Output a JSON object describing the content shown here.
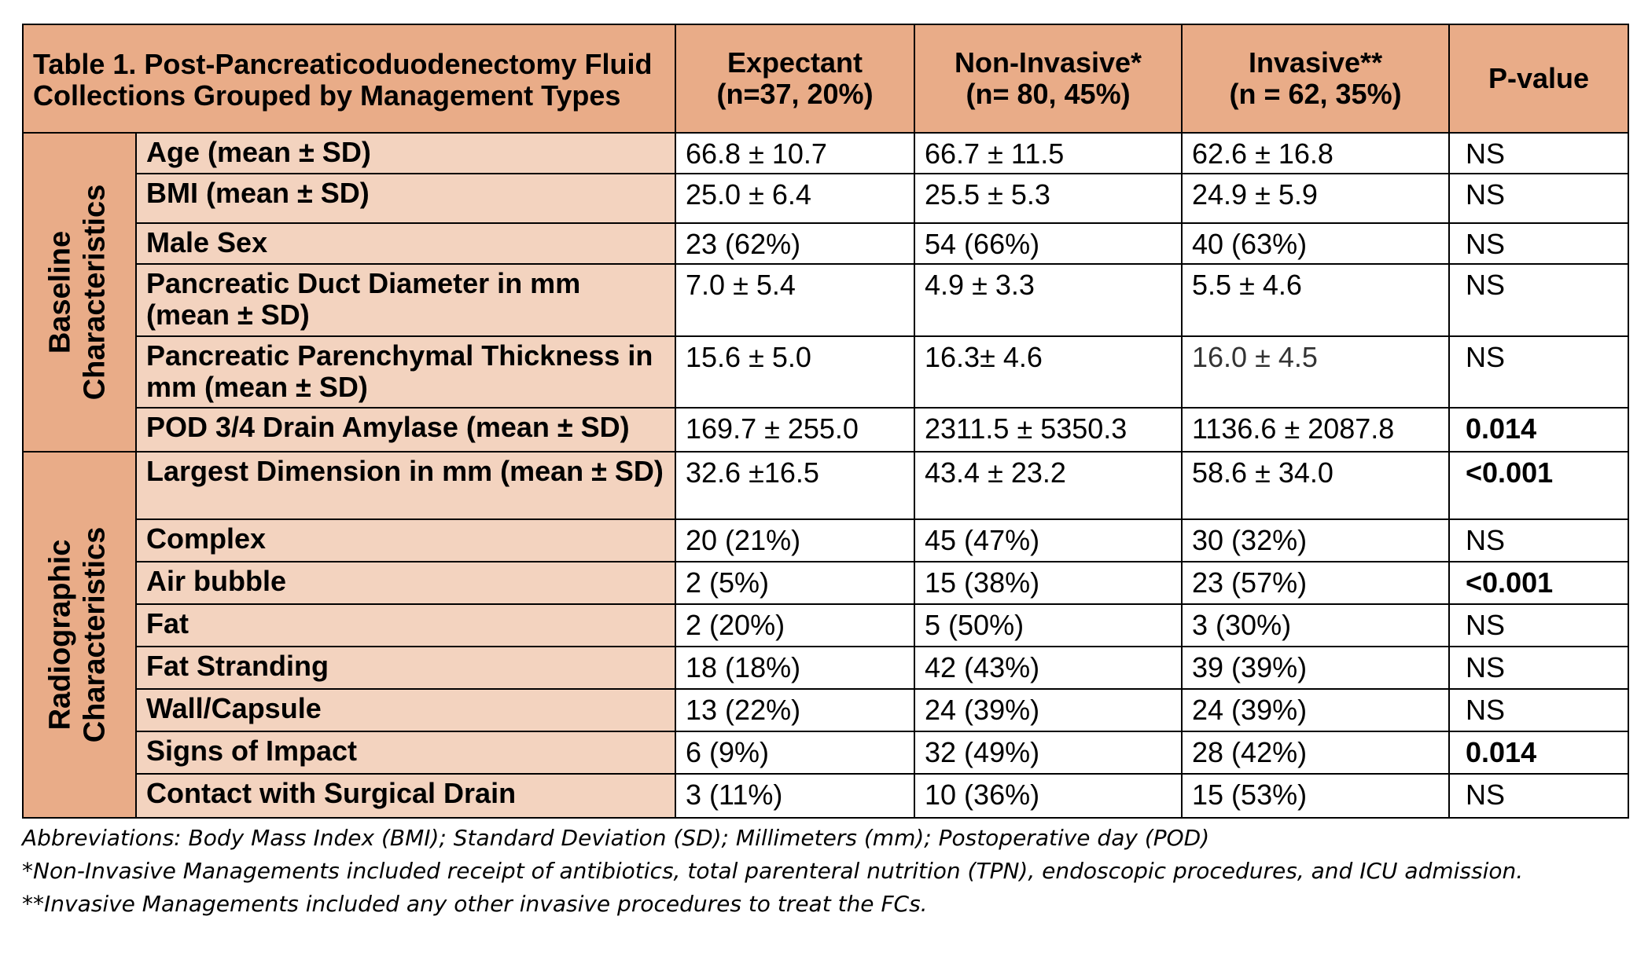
{
  "table": {
    "title": "Table 1. Post-Pancreaticoduodenectomy Fluid Collections Grouped by Management Types",
    "columns": [
      {
        "label": "Expectant",
        "sub": "(n=37, 20%)"
      },
      {
        "label": "Non-Invasive*",
        "sub": "(n= 80, 45%)"
      },
      {
        "label": "Invasive**",
        "sub": "(n = 62, 35%)"
      },
      {
        "label": "P-value",
        "sub": ""
      }
    ],
    "groups": [
      {
        "name_line1": "Baseline",
        "name_line2": "Characteristics",
        "rows": [
          {
            "label": "Age (mean ± SD)",
            "values": [
              "66.8 ± 10.7",
              "66.7 ± 11.5",
              "62.6 ± 16.8"
            ],
            "p": "NS",
            "significant": false
          },
          {
            "label": "BMI (mean ± SD)",
            "values": [
              "25.0 ± 6.4",
              "25.5 ± 5.3",
              "24.9 ± 5.9"
            ],
            "p": "NS",
            "significant": false
          },
          {
            "label": "Male Sex",
            "values": [
              "23 (62%)",
              "54 (66%)",
              "40 (63%)"
            ],
            "p": "NS",
            "significant": false
          },
          {
            "label": "Pancreatic Duct Diameter in mm (mean ± SD)",
            "values": [
              "7.0 ± 5.4",
              "4.9 ± 3.3",
              "5.5 ± 4.6"
            ],
            "p": "NS",
            "significant": false
          },
          {
            "label": "Pancreatic Parenchymal Thickness in mm (mean ± SD)",
            "values": [
              "15.6 ± 5.0",
              "16.3± 4.6",
              "16.0 ± 4.5"
            ],
            "p": "NS",
            "significant": false
          },
          {
            "label": "POD 3/4 Drain Amylase (mean ± SD)",
            "values": [
              "169.7 ± 255.0",
              "2311.5 ± 5350.3",
              "1136.6 ± 2087.8"
            ],
            "p": "0.014",
            "significant": true
          }
        ]
      },
      {
        "name_line1": "Radiographic",
        "name_line2": "Characteristics",
        "rows": [
          {
            "label": "Largest Dimension in mm (mean ± SD)",
            "values": [
              "32.6 ±16.5",
              "43.4 ± 23.2",
              "58.6 ± 34.0"
            ],
            "p": "<0.001",
            "significant": true
          },
          {
            "label": "Complex",
            "values": [
              "20 (21%)",
              "45 (47%)",
              "30 (32%)"
            ],
            "p": "NS",
            "significant": false
          },
          {
            "label": "Air bubble",
            "values": [
              "2 (5%)",
              "15 (38%)",
              "23 (57%)"
            ],
            "p": "<0.001",
            "significant": true
          },
          {
            "label": "Fat",
            "values": [
              "2 (20%)",
              "5 (50%)",
              "3 (30%)"
            ],
            "p": "NS",
            "significant": false
          },
          {
            "label": "Fat Stranding",
            "values": [
              "18 (18%)",
              "42 (43%)",
              "39 (39%)"
            ],
            "p": "NS",
            "significant": false
          },
          {
            "label": "Wall/Capsule",
            "values": [
              "13 (22%)",
              "24 (39%)",
              "24 (39%)"
            ],
            "p": "NS",
            "significant": false
          },
          {
            "label": "Signs of Impact",
            "values": [
              "6 (9%)",
              "32 (49%)",
              "28 (42%)"
            ],
            "p": "0.014",
            "significant": true
          },
          {
            "label": "Contact with Surgical Drain",
            "values": [
              "3 (11%)",
              "10 (36%)",
              "15 (53%)"
            ],
            "p": "NS",
            "significant": false
          }
        ]
      }
    ]
  },
  "footnotes": {
    "abbreviations": "Abbreviations: Body Mass Index (BMI); Standard Deviation (SD); Millimeters (mm); Postoperative day (POD)",
    "non_invasive": "*Non-Invasive Managements included receipt of antibiotics, total parenteral nutrition (TPN), endoscopic procedures, and ICU admission.",
    "invasive": "**Invasive Managements included any other invasive procedures to treat the FCs."
  },
  "colors": {
    "header_fill": "#e9ac88",
    "label_fill": "#f3d3bf",
    "border": "#000000"
  }
}
